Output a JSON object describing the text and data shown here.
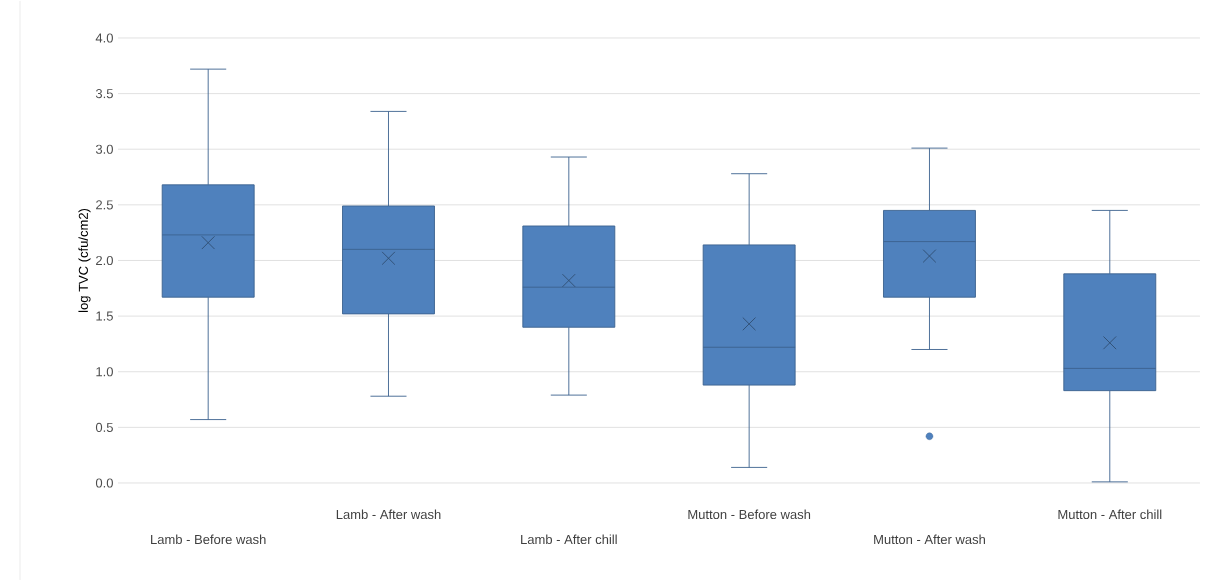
{
  "chart_data": {
    "type": "box",
    "ylabel": "log TVC (cfu/cm2)",
    "categories": [
      "Lamb - Before wash",
      "Lamb - After wash",
      "Lamb - After chill",
      "Mutton - Before wash",
      "Mutton - After wash",
      "Mutton - After chill"
    ],
    "boxes": [
      {
        "low": 0.57,
        "q1": 1.67,
        "median": 2.23,
        "q3": 2.68,
        "high": 3.72,
        "mean": 2.16
      },
      {
        "low": 0.78,
        "q1": 1.52,
        "median": 2.1,
        "q3": 2.49,
        "high": 3.34,
        "mean": 2.02
      },
      {
        "low": 0.79,
        "q1": 1.4,
        "median": 1.76,
        "q3": 2.31,
        "high": 2.93,
        "mean": 1.82
      },
      {
        "low": 0.14,
        "q1": 0.88,
        "median": 1.22,
        "q3": 2.14,
        "high": 2.78,
        "mean": 1.43
      },
      {
        "low": 1.2,
        "q1": 1.67,
        "median": 2.17,
        "q3": 2.45,
        "high": 3.01,
        "mean": 2.04,
        "outliers": [
          0.42
        ]
      },
      {
        "low": 0.01,
        "q1": 0.83,
        "median": 1.03,
        "q3": 1.88,
        "high": 2.45,
        "mean": 1.26
      }
    ],
    "color": "#4f81bd",
    "ylim": [
      0,
      4
    ],
    "yticks": [
      {
        "value": 0,
        "label": "0.0"
      },
      {
        "value": 0.5,
        "label": "0.5"
      },
      {
        "value": 1,
        "label": "1.0"
      },
      {
        "value": 1.5,
        "label": "1.5"
      },
      {
        "value": 2,
        "label": "2.0"
      },
      {
        "value": 2.5,
        "label": "2.5"
      },
      {
        "value": 3,
        "label": "3.0"
      },
      {
        "value": 3.5,
        "label": "3.5"
      },
      {
        "value": 4,
        "label": "4.0"
      }
    ],
    "grid": "y"
  }
}
